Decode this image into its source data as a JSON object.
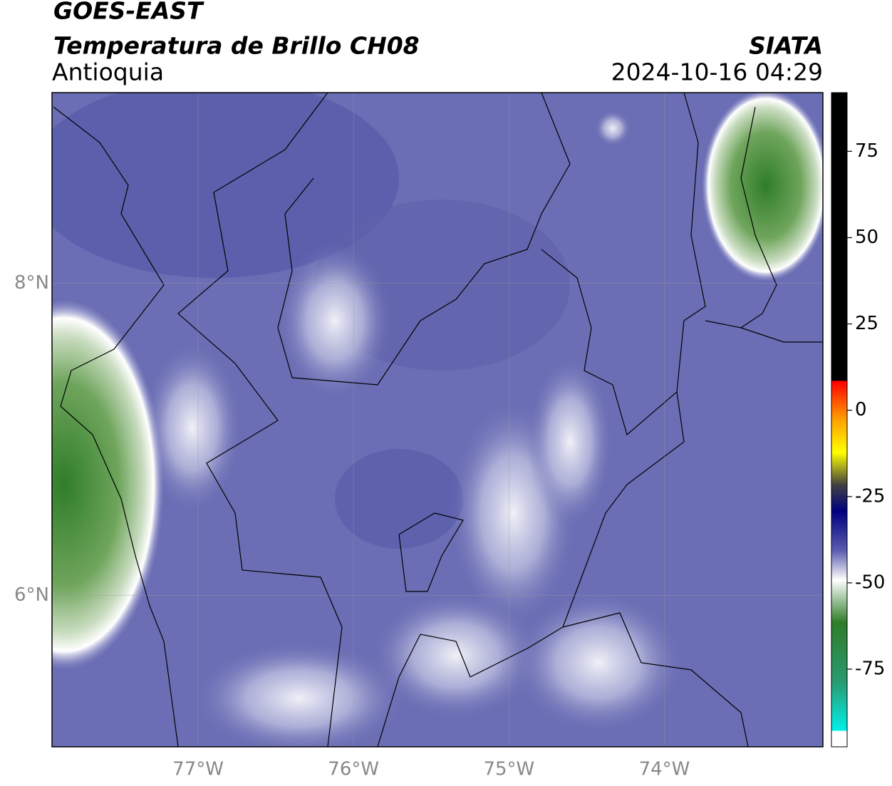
{
  "header": {
    "title": "GOES-EAST",
    "subtitle": "Temperatura de Brillo CH08",
    "region": "Antioquia",
    "source": "SIATA",
    "datetime": "2024-10-16 04:29"
  },
  "map": {
    "lon_range": [
      -77.94,
      -72.98
    ],
    "lat_range": [
      5.03,
      9.22
    ],
    "lon_ticks": [
      {
        "value": -77,
        "label": "77°W"
      },
      {
        "value": -76,
        "label": "76°W"
      },
      {
        "value": -75,
        "label": "75°W"
      },
      {
        "value": -74,
        "label": "74°W"
      }
    ],
    "lat_ticks": [
      {
        "value": 8,
        "label": "8°N"
      },
      {
        "value": 6,
        "label": "6°N"
      }
    ],
    "grid": true
  },
  "colorbar": {
    "lim": [
      -97.5,
      92
    ],
    "ticks": [
      75,
      50,
      25,
      0,
      -25,
      -50,
      -75
    ]
  }
}
